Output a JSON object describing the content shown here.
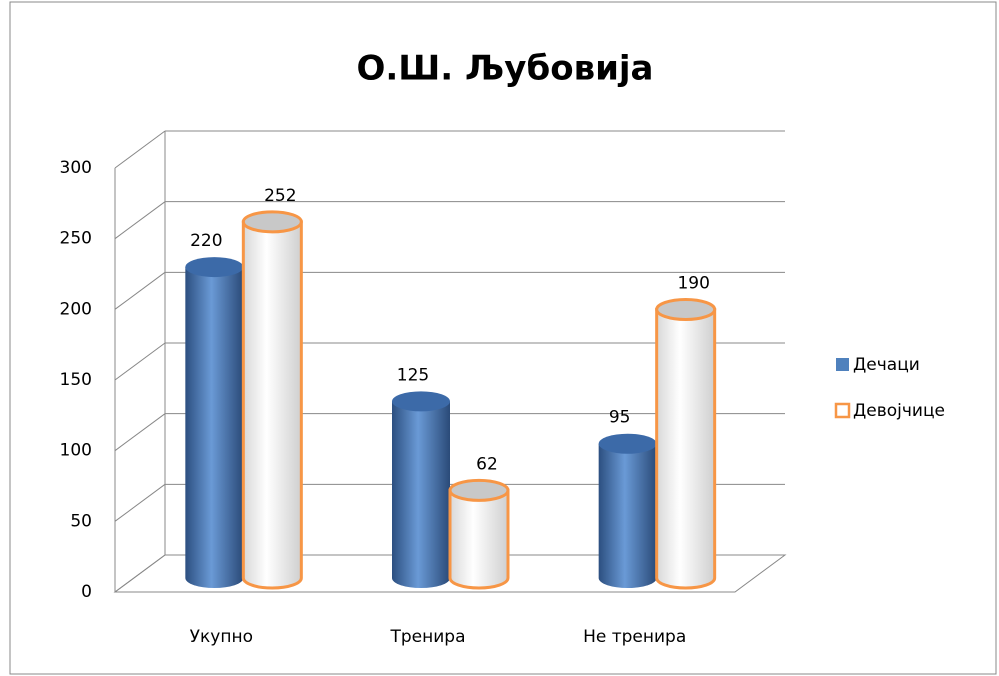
{
  "chart_data": {
    "type": "bar3d",
    "title": "О.Ш. Љубовија",
    "categories": [
      "Укупно",
      "Тренира",
      "Не тренира"
    ],
    "series": [
      {
        "name": "Дечаци",
        "color": "#4f81bd",
        "values": [
          220,
          125,
          95
        ]
      },
      {
        "name": "Девојчице",
        "color": "#ffffff",
        "edgecolor": "#f79646",
        "values": [
          252,
          62,
          190
        ]
      }
    ],
    "ylim": [
      0,
      300
    ],
    "yticks": [
      0,
      50,
      100,
      150,
      200,
      250,
      300
    ],
    "grid": true,
    "legend": "right"
  }
}
